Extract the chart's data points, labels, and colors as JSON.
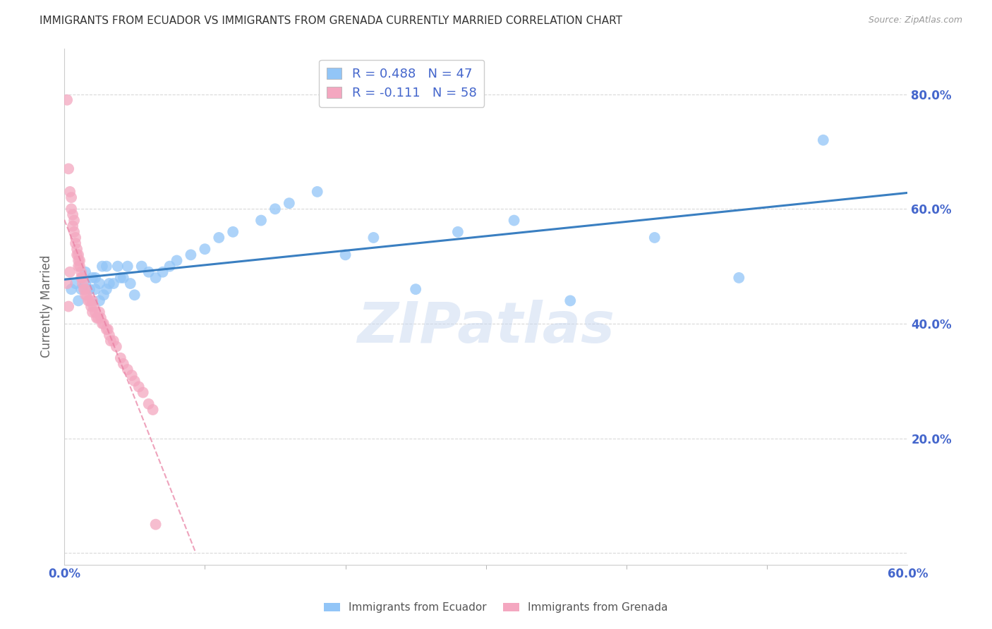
{
  "title": "IMMIGRANTS FROM ECUADOR VS IMMIGRANTS FROM GRENADA CURRENTLY MARRIED CORRELATION CHART",
  "source": "Source: ZipAtlas.com",
  "ylabel_left": "Currently Married",
  "ylabel_right_ticks": [
    0.0,
    0.2,
    0.4,
    0.6,
    0.8
  ],
  "ylabel_right_labels": [
    "",
    "20.0%",
    "40.0%",
    "60.0%",
    "80.0%"
  ],
  "xlim": [
    0.0,
    0.6
  ],
  "ylim": [
    -0.02,
    0.88
  ],
  "ecuador_R": 0.488,
  "ecuador_N": 47,
  "grenada_R": -0.111,
  "grenada_N": 58,
  "ecuador_color": "#92c5f7",
  "grenada_color": "#f4a7c0",
  "ecuador_line_color": "#3a7fc1",
  "grenada_line_color": "#e87ca0",
  "background_color": "#ffffff",
  "grid_color": "#d0d0d0",
  "title_color": "#333333",
  "axis_label_color": "#4466cc",
  "watermark_color": "#c8d8f0",
  "watermark_text": "ZIPatlas",
  "ecuador_x": [
    0.005,
    0.008,
    0.01,
    0.012,
    0.015,
    0.015,
    0.018,
    0.02,
    0.022,
    0.022,
    0.025,
    0.025,
    0.027,
    0.028,
    0.03,
    0.03,
    0.032,
    0.035,
    0.038,
    0.04,
    0.042,
    0.045,
    0.047,
    0.05,
    0.055,
    0.06,
    0.065,
    0.07,
    0.075,
    0.08,
    0.09,
    0.1,
    0.11,
    0.12,
    0.14,
    0.15,
    0.16,
    0.18,
    0.2,
    0.22,
    0.25,
    0.28,
    0.32,
    0.36,
    0.42,
    0.48,
    0.54
  ],
  "ecuador_y": [
    0.46,
    0.47,
    0.44,
    0.46,
    0.49,
    0.47,
    0.46,
    0.48,
    0.46,
    0.48,
    0.47,
    0.44,
    0.5,
    0.45,
    0.5,
    0.46,
    0.47,
    0.47,
    0.5,
    0.48,
    0.48,
    0.5,
    0.47,
    0.45,
    0.5,
    0.49,
    0.48,
    0.49,
    0.5,
    0.51,
    0.52,
    0.53,
    0.55,
    0.56,
    0.58,
    0.6,
    0.61,
    0.63,
    0.52,
    0.55,
    0.46,
    0.56,
    0.58,
    0.44,
    0.55,
    0.48,
    0.72
  ],
  "grenada_x": [
    0.002,
    0.003,
    0.004,
    0.005,
    0.005,
    0.006,
    0.006,
    0.007,
    0.007,
    0.008,
    0.008,
    0.009,
    0.009,
    0.01,
    0.01,
    0.01,
    0.011,
    0.011,
    0.012,
    0.012,
    0.013,
    0.013,
    0.014,
    0.015,
    0.015,
    0.016,
    0.017,
    0.018,
    0.019,
    0.02,
    0.02,
    0.021,
    0.022,
    0.023,
    0.024,
    0.025,
    0.026,
    0.027,
    0.028,
    0.03,
    0.031,
    0.032,
    0.033,
    0.035,
    0.037,
    0.04,
    0.042,
    0.045,
    0.048,
    0.05,
    0.053,
    0.056,
    0.06,
    0.063,
    0.002,
    0.003,
    0.004,
    0.065
  ],
  "grenada_y": [
    0.79,
    0.67,
    0.63,
    0.62,
    0.6,
    0.59,
    0.57,
    0.58,
    0.56,
    0.55,
    0.54,
    0.53,
    0.52,
    0.52,
    0.51,
    0.5,
    0.51,
    0.5,
    0.49,
    0.48,
    0.48,
    0.47,
    0.46,
    0.46,
    0.45,
    0.45,
    0.44,
    0.44,
    0.43,
    0.44,
    0.42,
    0.43,
    0.42,
    0.41,
    0.41,
    0.42,
    0.41,
    0.4,
    0.4,
    0.39,
    0.39,
    0.38,
    0.37,
    0.37,
    0.36,
    0.34,
    0.33,
    0.32,
    0.31,
    0.3,
    0.29,
    0.28,
    0.26,
    0.25,
    0.47,
    0.43,
    0.49,
    0.05
  ]
}
